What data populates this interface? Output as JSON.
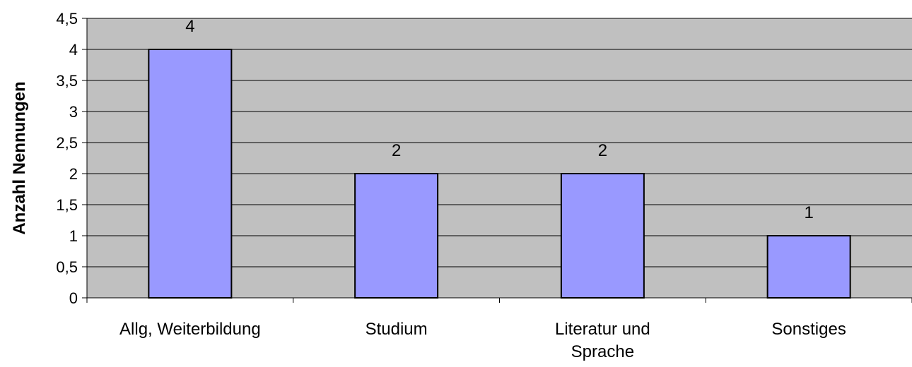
{
  "chart_data": {
    "type": "bar",
    "title": "",
    "xlabel": "",
    "ylabel": "Anzahl Nennungen",
    "categories": [
      [
        "Allg, Weiterbildung"
      ],
      [
        "Studium"
      ],
      [
        "Literatur und",
        "Sprache"
      ],
      [
        "Sonstiges"
      ]
    ],
    "values": [
      4,
      2,
      2,
      1
    ],
    "data_labels": [
      "4",
      "2",
      "2",
      "1"
    ],
    "ylim": [
      0,
      4.5
    ],
    "yticks": [
      0,
      0.5,
      1,
      1.5,
      2,
      2.5,
      3,
      3.5,
      4,
      4.5
    ],
    "ytick_labels": [
      "0",
      "0,5",
      "1",
      "1,5",
      "2",
      "2,5",
      "3",
      "3,5",
      "4",
      "4,5"
    ],
    "grid": true,
    "legend": "none",
    "colors": {
      "plot_background": "#c0c0c0",
      "bar_fill": "#9999ff",
      "bar_stroke": "#000000",
      "gridline": "#000000"
    }
  }
}
